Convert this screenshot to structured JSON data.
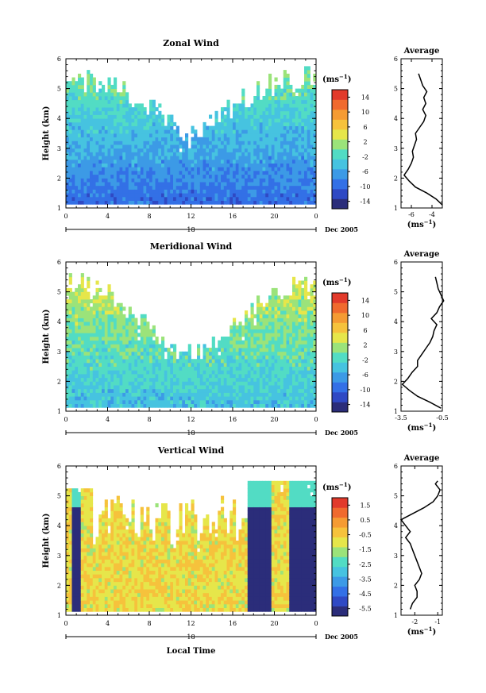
{
  "figure": {
    "x_axis_label": "Local Time",
    "date_label": "Dec 2005",
    "unit_label": "(ms",
    "unit_sup": "−1",
    "avg_unit_label": "(ms",
    "avg_unit_sup": "−1"
  },
  "chart_data": [
    {
      "type": "heatmap",
      "title": "Zonal Wind",
      "ylabel": "Height (km)",
      "xlabel": "Local Time",
      "x_ticks": [
        "0",
        "4",
        "8",
        "12",
        "16",
        "20",
        "0"
      ],
      "x_range_hours": [
        0,
        24
      ],
      "day_label": "18",
      "y_ticks": [
        "1",
        "2",
        "3",
        "4",
        "5",
        "6"
      ],
      "ylim": [
        1,
        6
      ],
      "colorbar": {
        "labels": [
          "14",
          "10",
          "6",
          "2",
          "-2",
          "-6",
          "-10",
          "-14"
        ],
        "range": [
          -16,
          16
        ],
        "colors": [
          "#2b2d7a",
          "#2f49c4",
          "#3370e6",
          "#3c9ae6",
          "#46c3e0",
          "#52dcc4",
          "#9be37a",
          "#e6e64a",
          "#f6c23c",
          "#f59b33",
          "#f06a2e",
          "#e23a2b"
        ]
      },
      "grid": false,
      "average_profile": {
        "title": "Average",
        "xlim": [
          -7,
          -3
        ],
        "x_ticks": [
          "-6",
          "-4"
        ],
        "height_km": [
          1.1,
          1.3,
          1.5,
          1.7,
          1.9,
          2.1,
          2.3,
          2.5,
          2.7,
          2.9,
          3.1,
          3.3,
          3.5,
          3.7,
          3.9,
          4.1,
          4.3,
          4.5,
          4.7,
          4.9,
          5.1,
          5.3,
          5.5
        ],
        "values": [
          -3.0,
          -3.6,
          -4.5,
          -5.6,
          -6.2,
          -6.7,
          -6.3,
          -6.0,
          -5.8,
          -5.9,
          -5.7,
          -5.5,
          -5.6,
          -5.2,
          -4.8,
          -4.6,
          -4.9,
          -4.6,
          -4.8,
          -4.5,
          -4.9,
          -5.1,
          -5.3
        ]
      }
    },
    {
      "type": "heatmap",
      "title": "Meridional Wind",
      "ylabel": "Height (km)",
      "xlabel": "Local Time",
      "x_ticks": [
        "0",
        "4",
        "8",
        "12",
        "16",
        "20",
        "0"
      ],
      "x_range_hours": [
        0,
        24
      ],
      "day_label": "18",
      "y_ticks": [
        "1",
        "2",
        "3",
        "4",
        "5",
        "6"
      ],
      "ylim": [
        1,
        6
      ],
      "colorbar": {
        "labels": [
          "14",
          "10",
          "6",
          "2",
          "-2",
          "-6",
          "-10",
          "-14"
        ],
        "range": [
          -16,
          16
        ],
        "colors": [
          "#2b2d7a",
          "#2f49c4",
          "#3370e6",
          "#3c9ae6",
          "#46c3e0",
          "#52dcc4",
          "#9be37a",
          "#e6e64a",
          "#f6c23c",
          "#f59b33",
          "#f06a2e",
          "#e23a2b"
        ]
      },
      "grid": false,
      "average_profile": {
        "title": "Average",
        "xlim": [
          -3.5,
          -0.5
        ],
        "x_ticks": [
          "-3.5",
          "-0.5"
        ],
        "height_km": [
          1.1,
          1.3,
          1.5,
          1.7,
          1.9,
          2.1,
          2.3,
          2.5,
          2.7,
          2.9,
          3.1,
          3.3,
          3.5,
          3.7,
          3.9,
          4.1,
          4.3,
          4.5,
          4.7,
          4.9,
          5.1,
          5.3,
          5.5
        ],
        "values": [
          -0.6,
          -1.4,
          -2.3,
          -2.9,
          -3.4,
          -3.0,
          -2.7,
          -2.3,
          -2.3,
          -2.0,
          -1.7,
          -1.4,
          -1.2,
          -1.1,
          -0.9,
          -1.3,
          -0.9,
          -0.7,
          -0.4,
          -0.6,
          -0.8,
          -0.9,
          -1.0
        ]
      }
    },
    {
      "type": "heatmap",
      "title": "Vertical Wind",
      "ylabel": "Height (km)",
      "xlabel": "Local Time",
      "x_ticks": [
        "0",
        "4",
        "8",
        "12",
        "16",
        "20",
        "0"
      ],
      "x_range_hours": [
        0,
        24
      ],
      "day_label": "18",
      "y_ticks": [
        "1",
        "2",
        "3",
        "4",
        "5",
        "6"
      ],
      "ylim": [
        1,
        6
      ],
      "colorbar": {
        "labels": [
          "1.5",
          "0.5",
          "-0.5",
          "-1.5",
          "-2.5",
          "-3.5",
          "-4.5",
          "-5.5"
        ],
        "range": [
          -6,
          2
        ],
        "colors": [
          "#2b2d7a",
          "#2f49c4",
          "#3370e6",
          "#3c9ae6",
          "#46c3e0",
          "#52dcc4",
          "#9be37a",
          "#e6e64a",
          "#f6c23c",
          "#f59b33",
          "#f06a2e",
          "#e23a2b"
        ]
      },
      "grid": false,
      "average_profile": {
        "title": "Average",
        "xlim": [
          -2.6,
          -0.8
        ],
        "x_ticks": [
          "-2",
          "-1"
        ],
        "height_km": [
          1.2,
          1.4,
          1.6,
          1.8,
          2.0,
          2.2,
          2.4,
          2.6,
          2.8,
          3.0,
          3.2,
          3.4,
          3.6,
          3.8,
          4.0,
          4.2,
          4.4,
          4.6,
          4.8,
          5.0,
          5.2,
          5.4,
          5.5
        ],
        "values": [
          -2.2,
          -2.1,
          -1.9,
          -1.9,
          -2.0,
          -1.8,
          -1.7,
          -1.8,
          -1.9,
          -2.0,
          -2.1,
          -2.2,
          -2.4,
          -2.2,
          -2.4,
          -2.6,
          -2.1,
          -1.6,
          -1.2,
          -1.0,
          -0.9,
          -1.1,
          -1.0
        ]
      }
    }
  ]
}
